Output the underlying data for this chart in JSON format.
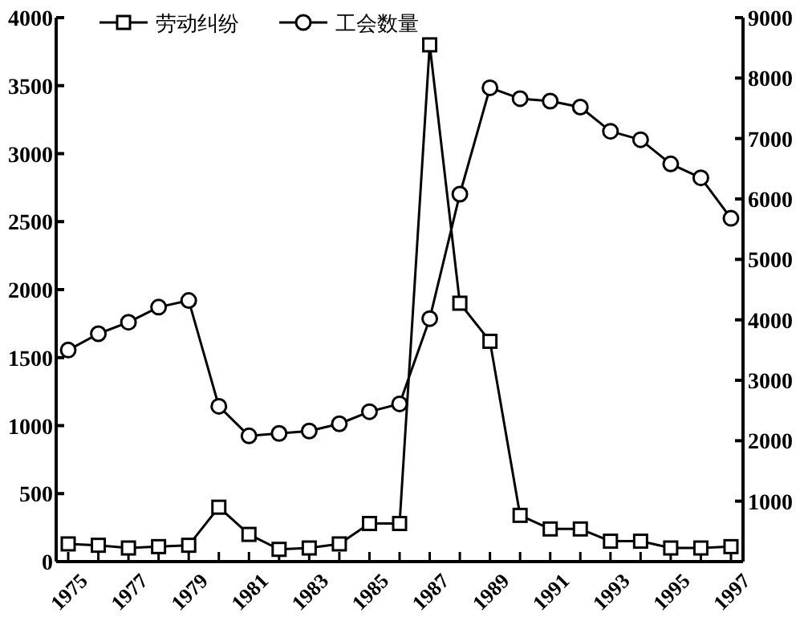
{
  "chart_data": {
    "type": "line",
    "x": [
      1975,
      1976,
      1977,
      1978,
      1979,
      1980,
      1981,
      1982,
      1983,
      1984,
      1985,
      1986,
      1987,
      1988,
      1989,
      1990,
      1991,
      1992,
      1993,
      1994,
      1995,
      1996,
      1997
    ],
    "series": [
      {
        "name": "劳动纠纷",
        "color": "#000000",
        "marker": "square",
        "values": [
          130,
          120,
          100,
          110,
          120,
          400,
          200,
          90,
          100,
          130,
          280,
          280,
          3800,
          1900,
          1620,
          340,
          240,
          240,
          150,
          150,
          100,
          100,
          110
        ]
      },
      {
        "name": "工会数量",
        "color": "#000000",
        "marker": "circle",
        "axis": "y2",
        "values": [
          3500,
          3770,
          3960,
          4210,
          4320,
          2570,
          2080,
          2120,
          2160,
          2280,
          2480,
          2610,
          4020,
          6080,
          7840,
          7660,
          7620,
          7520,
          7120,
          6980,
          6580,
          6350,
          5680
        ]
      }
    ],
    "xlim": [
      1974.6,
      1997.4
    ],
    "xticks": [
      1975,
      {
        "value": 1976,
        "label": null
      },
      1977,
      {
        "value": 1978,
        "label": null
      },
      1979,
      {
        "value": 1980,
        "label": null
      },
      1981,
      {
        "value": 1982,
        "label": null
      },
      1983,
      {
        "value": 1984,
        "label": null
      },
      1985,
      {
        "value": 1986,
        "label": null
      },
      1987,
      {
        "value": 1988,
        "label": null
      },
      1989,
      {
        "value": 1990,
        "label": null
      },
      1991,
      {
        "value": 1992,
        "label": null
      },
      1993,
      {
        "value": 1994,
        "label": null
      },
      1995,
      {
        "value": 1996,
        "label": null
      },
      1997
    ],
    "ylim": [
      0,
      4000
    ],
    "yticks": [
      0,
      500,
      1000,
      1500,
      2000,
      2500,
      3000,
      3500,
      4000
    ],
    "y2lim": [
      0,
      9000
    ],
    "y2ticks": [
      1000,
      2000,
      3000,
      4000,
      5000,
      6000,
      7000,
      8000,
      9000
    ],
    "legend": "top left",
    "grid": false,
    "line_style": "solid"
  }
}
